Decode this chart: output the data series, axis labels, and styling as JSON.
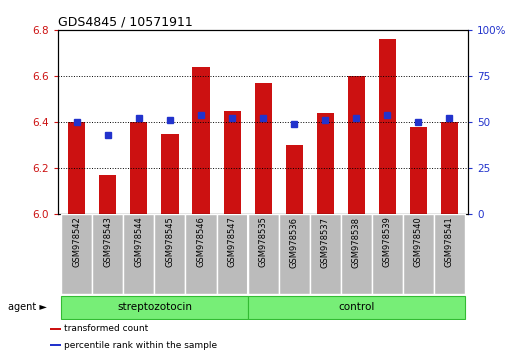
{
  "title": "GDS4845 / 10571911",
  "samples": [
    "GSM978542",
    "GSM978543",
    "GSM978544",
    "GSM978545",
    "GSM978546",
    "GSM978547",
    "GSM978535",
    "GSM978536",
    "GSM978537",
    "GSM978538",
    "GSM978539",
    "GSM978540",
    "GSM978541"
  ],
  "transformed_count": [
    6.4,
    6.17,
    6.4,
    6.35,
    6.64,
    6.45,
    6.57,
    6.3,
    6.44,
    6.6,
    6.76,
    6.38,
    6.4
  ],
  "percentile_rank": [
    50,
    43,
    52,
    51,
    54,
    52,
    52,
    49,
    51,
    52,
    54,
    50,
    52
  ],
  "bar_color": "#cc1111",
  "marker_color": "#2233cc",
  "ylim_left": [
    6.0,
    6.8
  ],
  "ylim_right": [
    0,
    100
  ],
  "yticks_left": [
    6.0,
    6.2,
    6.4,
    6.6,
    6.8
  ],
  "yticks_right": [
    0,
    25,
    50,
    75,
    100
  ],
  "ytick_labels_right": [
    "0",
    "25",
    "50",
    "75",
    "100%"
  ],
  "groups": [
    {
      "label": "streptozotocin",
      "start": 0,
      "end": 5
    },
    {
      "label": "control",
      "start": 6,
      "end": 12
    }
  ],
  "group_separator": 5.5,
  "group_color": "#77ee77",
  "group_border_color": "#33bb33",
  "xlabel_group": "agent",
  "grid_color": "#000000",
  "background_color": "#ffffff",
  "tick_area_color": "#bbbbbb",
  "legend_items": [
    {
      "label": "transformed count",
      "color": "#cc1111"
    },
    {
      "label": "percentile rank within the sample",
      "color": "#2233cc"
    }
  ]
}
